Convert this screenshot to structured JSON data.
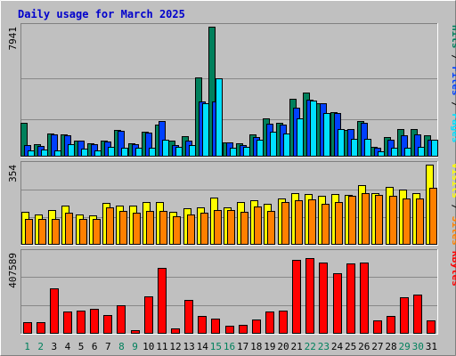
{
  "chart_data": {
    "type": "bar",
    "title": "Daily usage for March 2025",
    "categories": [
      "1",
      "2",
      "3",
      "4",
      "5",
      "6",
      "7",
      "8",
      "9",
      "10",
      "11",
      "12",
      "13",
      "14",
      "15",
      "16",
      "17",
      "18",
      "19",
      "20",
      "21",
      "22",
      "23",
      "24",
      "25",
      "26",
      "27",
      "28",
      "29",
      "30",
      "31"
    ],
    "weekend_days": [
      "1",
      "2",
      "8",
      "9",
      "15",
      "16",
      "22",
      "23",
      "29",
      "30"
    ],
    "colors": {
      "hits": "#00805C",
      "files": "#0040FF",
      "pages": "#00E0FF",
      "visits": "#FFFF00",
      "sites": "#FF8000",
      "kbytes": "#FF0000",
      "weekday_label": "#000000",
      "weekend_label": "#00805C",
      "title": "#0000CC",
      "panel_bg": "#C0C0C0",
      "page_bg": "#C0C0C0"
    },
    "panels": [
      {
        "id": "top",
        "ymax_label": "7941",
        "ymax": 7941,
        "side_labels": [
          {
            "text": "Pages",
            "color": "#00E0FF"
          },
          {
            "text": " / ",
            "color": "#000000"
          },
          {
            "text": "Files",
            "color": "#0040FF"
          },
          {
            "text": " / ",
            "color": "#000000"
          },
          {
            "text": "Hits",
            "color": "#00805C"
          }
        ],
        "series": [
          {
            "name": "Hits",
            "color": "#00805C",
            "values": [
              2060,
              740,
              1420,
              1370,
              1000,
              840,
              990,
              1630,
              800,
              1530,
              1950,
              960,
              1260,
              4850,
              7941,
              890,
              810,
              1340,
              2350,
              2060,
              3560,
              3920,
              3270,
              2710,
              1650,
              2200,
              580,
              1170,
              1670,
              1710,
              1280
            ]
          },
          {
            "name": "Files",
            "color": "#0040FF",
            "values": [
              690,
              670,
              1350,
              1300,
              960,
              770,
              930,
              1560,
              750,
              1450,
              2170,
              730,
              990,
              3350,
              3350,
              880,
              680,
              1200,
              2010,
              1960,
              2990,
              3480,
              3290,
              2680,
              1690,
              2080,
              550,
              1020,
              1300,
              1340,
              1040
            ]
          },
          {
            "name": "Pages",
            "color": "#00E0FF",
            "values": [
              370,
              440,
              400,
              760,
              490,
              400,
              590,
              560,
              550,
              560,
              1030,
              580,
              700,
              3270,
              4760,
              550,
              580,
              1020,
              1550,
              1440,
              2340,
              3430,
              2650,
              1690,
              1070,
              1090,
              320,
              550,
              550,
              580,
              1040
            ]
          }
        ]
      },
      {
        "id": "middle",
        "ymax_label": "354",
        "ymax": 354,
        "side_labels": [
          {
            "text": "Sites",
            "color": "#FF8000"
          },
          {
            "text": " / ",
            "color": "#000000"
          },
          {
            "text": "Visits",
            "color": "#FFFF00"
          }
        ],
        "series": [
          {
            "name": "Visits",
            "color": "#FFFF00",
            "values": [
              147,
              135,
              155,
              175,
              135,
              130,
              185,
              175,
              175,
              190,
              190,
              145,
              160,
              165,
              210,
              165,
              190,
              195,
              180,
              205,
              230,
              225,
              215,
              225,
              220,
              265,
              230,
              255,
              245,
              230,
              354
            ]
          },
          {
            "name": "Sites",
            "color": "#FF8000",
            "values": [
              115,
              115,
              115,
              140,
              115,
              115,
              165,
              150,
              140,
              150,
              150,
              125,
              135,
              140,
              155,
              155,
              145,
              170,
              150,
              190,
              195,
              200,
              180,
              190,
              215,
              230,
              220,
              215,
              205,
              205,
              250
            ]
          }
        ]
      },
      {
        "id": "bottom",
        "ymax_label": "407589",
        "ymax": 407589,
        "side_labels": [
          {
            "text": "KBytes",
            "color": "#FF0000"
          }
        ],
        "series": [
          {
            "name": "KBytes",
            "color": "#FF0000",
            "values": [
              60000,
              60000,
              230000,
              110000,
              115000,
              125000,
              95000,
              145000,
              20000,
              190000,
              330000,
              25000,
              170000,
              90000,
              78000,
              40000,
              45000,
              70000,
              110000,
              115000,
              370000,
              380000,
              360000,
              305000,
              355000,
              360000,
              65000,
              90000,
              185000,
              195000,
              65000
            ]
          }
        ]
      }
    ]
  }
}
